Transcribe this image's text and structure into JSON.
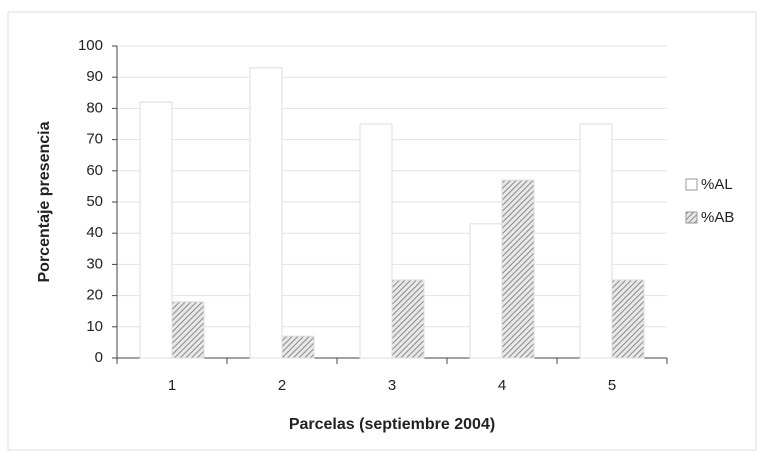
{
  "chart_data": {
    "type": "bar",
    "categories": [
      "1",
      "2",
      "3",
      "4",
      "5"
    ],
    "series": [
      {
        "name": "%AL",
        "color": "#ffffff",
        "hatch": false,
        "values": [
          82,
          93,
          75,
          43,
          75
        ]
      },
      {
        "name": "%AB",
        "color": "#8a8a8a",
        "hatch": true,
        "values": [
          18,
          7,
          25,
          57,
          25
        ]
      }
    ],
    "xlabel": "Parcelas (septiembre 2004)",
    "ylabel": "Porcentaje  presencia",
    "ylim": [
      0,
      100
    ],
    "yticks": [
      0,
      10,
      20,
      30,
      40,
      50,
      60,
      70,
      80,
      90,
      100
    ],
    "grid": true,
    "legend": "right"
  }
}
